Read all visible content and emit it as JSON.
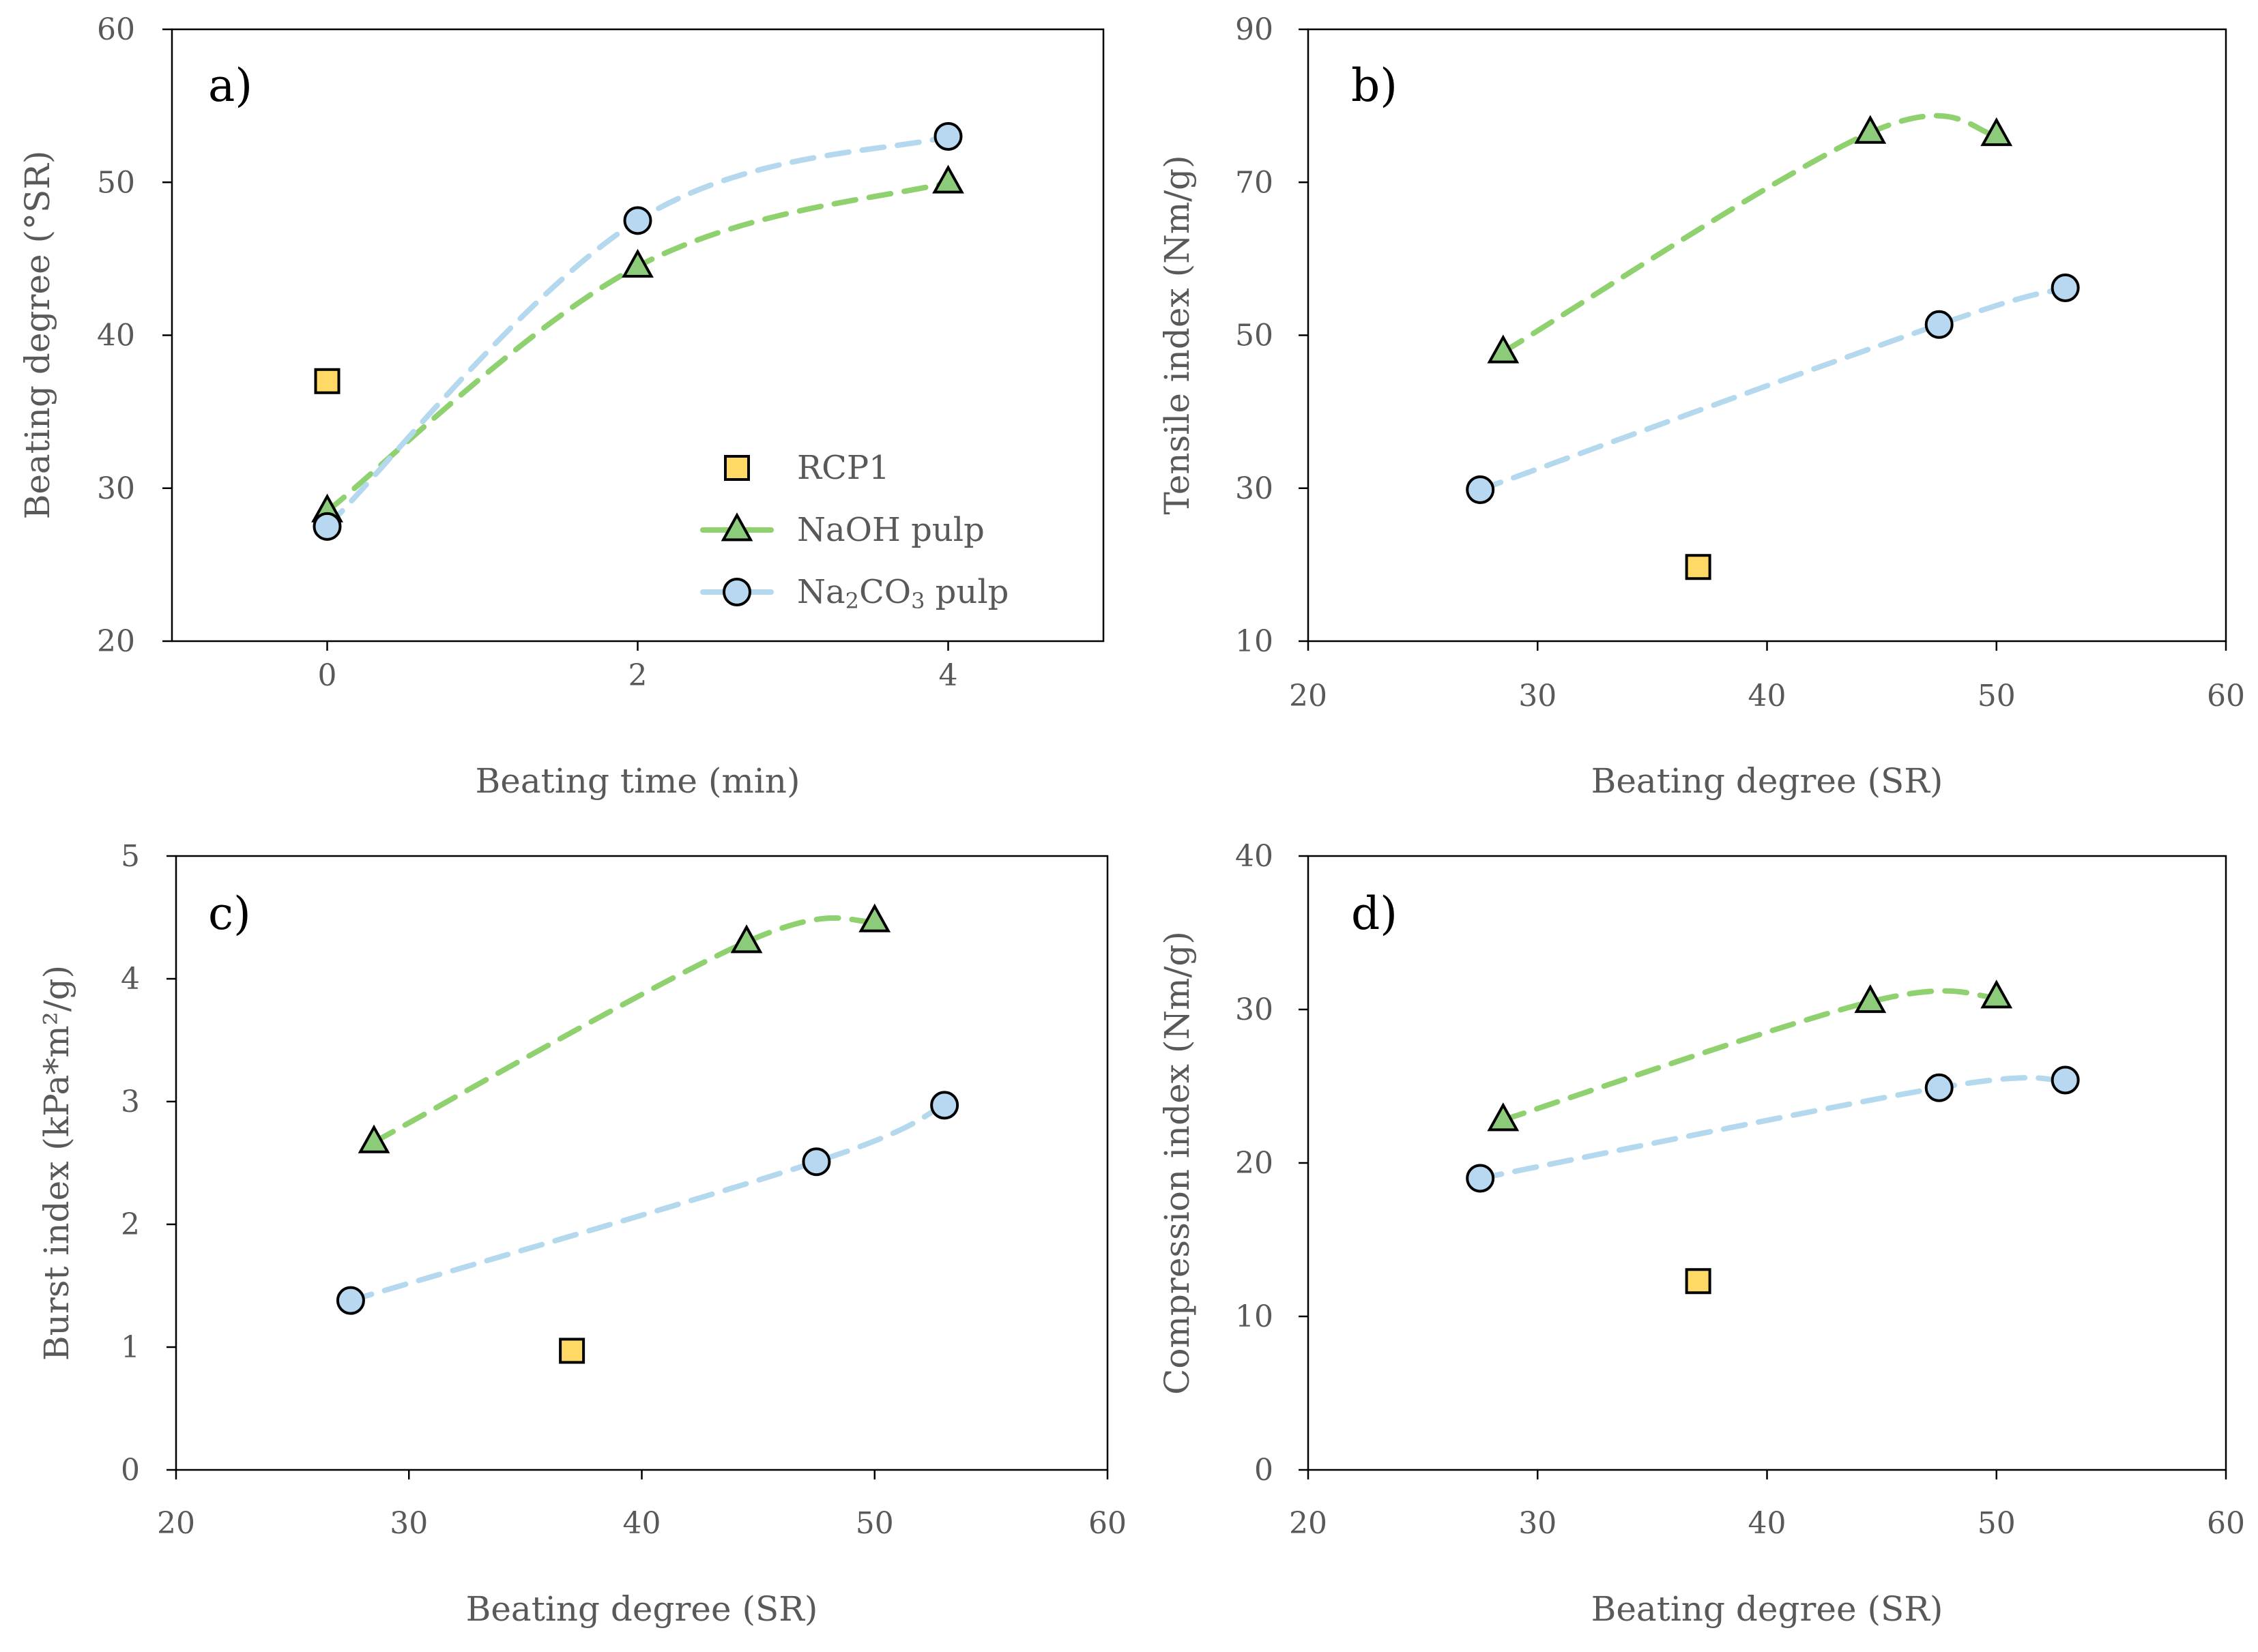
{
  "series_styles": {
    "RCP1": {
      "marker": "square",
      "fill": "#FFD966",
      "stroke": "#000000"
    },
    "NaOH pulp": {
      "marker": "triangle",
      "fill": "#8CCB7A",
      "stroke": "#000000",
      "line": "#8FD16F"
    },
    "Na2CO3 pulp": {
      "marker": "circle",
      "fill": "#B7D8F0",
      "stroke": "#000000",
      "line": "#B4D9EE"
    }
  },
  "legend": {
    "items": [
      {
        "label": "RCP1",
        "series": "RCP1"
      },
      {
        "label": "NaOH pulp",
        "series": "NaOH pulp"
      },
      {
        "label": "Na",
        "sub": "2",
        "label2": "CO",
        "sub2": "3",
        "label3": " pulp",
        "series": "Na2CO3 pulp"
      }
    ]
  },
  "chart_data": [
    {
      "panel": "a)",
      "type": "scatter",
      "xlabel": "Beating time (min)",
      "ylabel": "Beating degree (°SR)",
      "xlim": [
        -1,
        5
      ],
      "ylim": [
        20,
        60
      ],
      "xticks": [
        0,
        2,
        4
      ],
      "yticks": [
        20,
        30,
        40,
        50,
        60
      ],
      "series": [
        {
          "name": "RCP1",
          "points": [
            [
              0,
              37
            ]
          ],
          "connected": false
        },
        {
          "name": "NaOH pulp",
          "points": [
            [
              0,
              28.5
            ],
            [
              2,
              44.5
            ],
            [
              4,
              50
            ]
          ],
          "connected": true
        },
        {
          "name": "Na2CO3 pulp",
          "points": [
            [
              0,
              27.5
            ],
            [
              2,
              47.5
            ],
            [
              4,
              53
            ]
          ],
          "connected": true
        }
      ]
    },
    {
      "panel": "b)",
      "type": "scatter",
      "xlabel": "Beating degree (SR)",
      "ylabel": "Tensile index (Nm/g)",
      "xlim": [
        20,
        60
      ],
      "ylim": [
        10,
        90
      ],
      "xticks": [
        20,
        30,
        40,
        50,
        60
      ],
      "yticks": [
        10,
        30,
        50,
        70,
        90
      ],
      "series": [
        {
          "name": "RCP1",
          "points": [
            [
              37,
              19.7
            ]
          ],
          "connected": false
        },
        {
          "name": "NaOH pulp",
          "points": [
            [
              28.5,
              47.8
            ],
            [
              44.5,
              76.5
            ],
            [
              50,
              76.2
            ]
          ],
          "connected": true
        },
        {
          "name": "Na2CO3 pulp",
          "points": [
            [
              27.5,
              29.8
            ],
            [
              47.5,
              51.4
            ],
            [
              53,
              56.2
            ]
          ],
          "connected": true
        }
      ]
    },
    {
      "panel": "c)",
      "type": "scatter",
      "xlabel": "Beating degree (SR)",
      "ylabel": "Burst index (kPa*m²/g)",
      "xlim": [
        20,
        60
      ],
      "ylim": [
        0,
        5
      ],
      "xticks": [
        20,
        30,
        40,
        50,
        60
      ],
      "yticks": [
        0,
        1,
        2,
        3,
        4,
        5
      ],
      "series": [
        {
          "name": "RCP1",
          "points": [
            [
              37,
              0.97
            ]
          ],
          "connected": false
        },
        {
          "name": "NaOH pulp",
          "points": [
            [
              28.5,
              2.67
            ],
            [
              44.5,
              4.3
            ],
            [
              50,
              4.47
            ]
          ],
          "connected": true
        },
        {
          "name": "Na2CO3 pulp",
          "points": [
            [
              27.5,
              1.38
            ],
            [
              47.5,
              2.51
            ],
            [
              53,
              2.97
            ]
          ],
          "connected": true
        }
      ]
    },
    {
      "panel": "d)",
      "type": "scatter",
      "xlabel": "Beating degree (SR)",
      "ylabel": "Compression index (Nm/g)",
      "xlim": [
        20,
        60
      ],
      "ylim": [
        0,
        40
      ],
      "xticks": [
        20,
        30,
        40,
        50,
        60
      ],
      "yticks": [
        0,
        10,
        20,
        30,
        40
      ],
      "series": [
        {
          "name": "RCP1",
          "points": [
            [
              37,
              12.3
            ]
          ],
          "connected": false
        },
        {
          "name": "NaOH pulp",
          "points": [
            [
              28.5,
              22.8
            ],
            [
              44.5,
              30.5
            ],
            [
              50,
              30.8
            ]
          ],
          "connected": true
        },
        {
          "name": "Na2CO3 pulp",
          "points": [
            [
              27.5,
              19
            ],
            [
              47.5,
              24.9
            ],
            [
              53,
              25.4
            ]
          ],
          "connected": true
        }
      ]
    }
  ]
}
